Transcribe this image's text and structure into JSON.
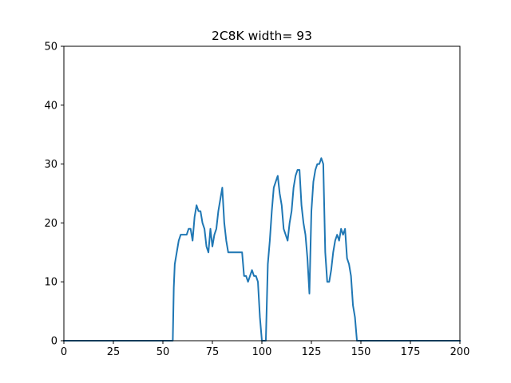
{
  "chart_data": {
    "type": "line",
    "title": "2C8K width= 93",
    "xlabel": "",
    "ylabel": "",
    "xlim": [
      0,
      200
    ],
    "ylim": [
      0,
      50
    ],
    "xticks": [
      0,
      25,
      50,
      75,
      100,
      125,
      150,
      175,
      200
    ],
    "yticks": [
      0,
      10,
      20,
      30,
      40,
      50
    ],
    "grid": false,
    "series": [
      {
        "color": "#1f77b4",
        "x": [
          0,
          55,
          55.5,
          56,
          57,
          58,
          59,
          60,
          61,
          62,
          63,
          64,
          65,
          66,
          67,
          68,
          69,
          70,
          71,
          72,
          73,
          74,
          75,
          76,
          77,
          78,
          79,
          80,
          81,
          82,
          83,
          84,
          85,
          86,
          87,
          88,
          89,
          90,
          91,
          92,
          93,
          94,
          95,
          96,
          97,
          98,
          99,
          100,
          101,
          102,
          103,
          104,
          105,
          106,
          107,
          108,
          109,
          110,
          111,
          112,
          113,
          114,
          115,
          116,
          117,
          118,
          119,
          120,
          121,
          122,
          123,
          124,
          125,
          126,
          127,
          128,
          129,
          130,
          131,
          132,
          133,
          134,
          135,
          136,
          137,
          138,
          139,
          140,
          141,
          142,
          143,
          144,
          145,
          146,
          147,
          148,
          200
        ],
        "y": [
          0,
          0,
          9,
          13,
          15,
          17,
          18,
          18,
          18,
          18,
          19,
          19,
          17,
          21,
          23,
          22,
          22,
          20,
          19,
          16,
          15,
          19,
          16,
          18,
          19,
          22,
          24,
          26,
          20,
          17,
          15,
          15,
          15,
          15,
          15,
          15,
          15,
          15,
          11,
          11,
          10,
          11,
          12,
          11,
          11,
          10,
          4,
          0,
          0,
          0,
          13,
          17,
          22,
          26,
          27,
          28,
          25,
          23,
          19,
          18,
          17,
          20,
          22,
          26,
          28,
          29,
          29,
          23,
          20,
          18,
          14,
          8,
          22,
          27,
          29,
          30,
          30,
          31,
          30,
          15,
          10,
          10,
          12,
          15,
          17,
          18,
          17,
          19,
          18,
          19,
          14,
          13,
          11,
          6,
          4,
          0,
          0
        ]
      }
    ]
  }
}
